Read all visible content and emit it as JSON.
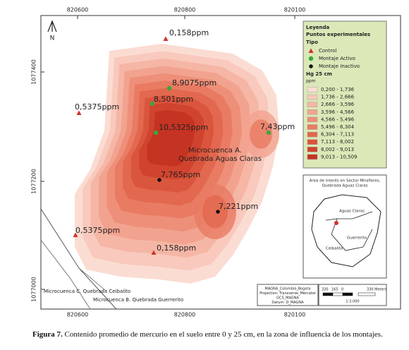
{
  "frame": {
    "top_ticks": [
      "820600",
      "820800",
      "820100"
    ],
    "bottom_ticks": [
      "820600",
      "820800",
      "820100"
    ],
    "left_ticks": [
      "1077400",
      "1077200",
      "1077000"
    ],
    "north": "N"
  },
  "points": [
    {
      "label": "0,158ppm",
      "type": "Control"
    },
    {
      "label": "0,5375ppm",
      "type": "Control"
    },
    {
      "label": "0,5375ppm",
      "type": "Control"
    },
    {
      "label": "0,158ppm",
      "type": "Control"
    },
    {
      "label": "8,9075ppm",
      "type": "Montaje Activo"
    },
    {
      "label": "8,501ppm",
      "type": "Montaje Activo"
    },
    {
      "label": "10,5325ppm",
      "type": "Montaje Activo"
    },
    {
      "label": "7,43ppm",
      "type": "Montaje Activo"
    },
    {
      "label": "7,765ppm",
      "type": "Montaje Inactivo"
    },
    {
      "label": "7,221ppm",
      "type": "Montaje Inactivo"
    }
  ],
  "area_label": [
    "Microcuenca A.",
    "Quebrada Aguas Claras"
  ],
  "streams": [
    "Microcuenca C. Quebrada Ceibalito",
    "Microcuenca B. Quebrada Guerrerito"
  ],
  "legend": {
    "title": "Leyenda",
    "subtitle": "Puntos experimentales",
    "type_title": "Tipo",
    "types": [
      {
        "name": "Control",
        "color": "#d2322a"
      },
      {
        "name": "Montaje Activo",
        "color": "#3aa83a"
      },
      {
        "name": "Montaje Inactivo",
        "color": "#111111"
      }
    ],
    "hg_title": [
      "Hg 25 cm",
      "ppm"
    ],
    "classes": [
      {
        "label": "0,200 - 1,736",
        "color": "#fbdcd3"
      },
      {
        "label": "1,736 - 2,666",
        "color": "#f8c9bc"
      },
      {
        "label": "2,666 - 3,596",
        "color": "#f5b6a5"
      },
      {
        "label": "3,596 - 4,566",
        "color": "#f2a38f"
      },
      {
        "label": "4,566 - 5,496",
        "color": "#ee8f79"
      },
      {
        "label": "5,496 - 6,304",
        "color": "#e97b63"
      },
      {
        "label": "6,304 - 7,113",
        "color": "#e2684f"
      },
      {
        "label": "7,113 - 8,002",
        "color": "#da553d"
      },
      {
        "label": "8,002 - 9,013",
        "color": "#d0432e"
      },
      {
        "label": "9,013 - 10,509",
        "color": "#c53322"
      }
    ]
  },
  "inset": {
    "title": [
      "Área de interés en Sector Miraflores,",
      "Quebrada Aguas Claras"
    ],
    "labels": [
      "Aguas Claras",
      "Guerrerito",
      "Ceibalito"
    ]
  },
  "projection": [
    "MAGNA_Colombia_Bogota",
    "Projection: Transverse_Mercator",
    "GCS_MAGNA",
    "Datum: D_MAGNA"
  ],
  "scale": {
    "ticks": [
      "330",
      "165",
      "0",
      "330 Meters"
    ],
    "ratio": "1:3.000"
  },
  "caption": {
    "label": "Figura 7.",
    "text": "Contenido promedio de mercurio en el suelo entre 0 y 25 cm, en la zona de influencia de los montajes."
  }
}
